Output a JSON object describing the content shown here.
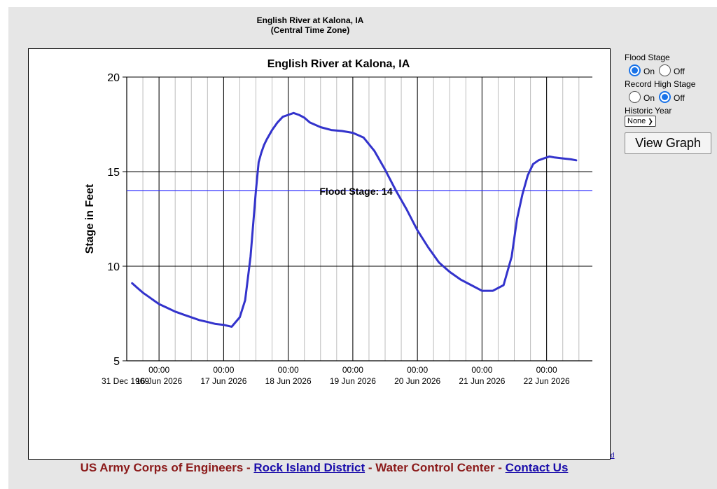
{
  "page": {
    "title_line1": "English River at Kalona, IA",
    "title_line2": "(Central Time Zone)"
  },
  "chart_data": {
    "type": "line",
    "title": "English River at Kalona, IA",
    "ylabel": "Stage in Feet",
    "xlabel": "",
    "ylim": [
      5,
      20
    ],
    "yticks": [
      5,
      10,
      15,
      20
    ],
    "xlim": [
      "2026-06-15T12:00",
      "2026-06-22T17:00"
    ],
    "x_major_ticks": [
      {
        "at": "2026-06-16T00:00",
        "time": "00:00",
        "date": "16 Jun 2026"
      },
      {
        "at": "2026-06-17T00:00",
        "time": "00:00",
        "date": "17 Jun 2026"
      },
      {
        "at": "2026-06-18T00:00",
        "time": "00:00",
        "date": "18 Jun 2026"
      },
      {
        "at": "2026-06-19T00:00",
        "time": "00:00",
        "date": "19 Jun 2026"
      },
      {
        "at": "2026-06-20T00:00",
        "time": "00:00",
        "date": "20 Jun 2026"
      },
      {
        "at": "2026-06-21T00:00",
        "time": "00:00",
        "date": "21 Jun 2026"
      },
      {
        "at": "2026-06-22T00:00",
        "time": "00:00",
        "date": "22 Jun 2026"
      }
    ],
    "x_first_label": "31 Dec 1969",
    "minor_gridlines_hours": 6,
    "grid": true,
    "flood_stage": {
      "value": 14,
      "label": "Flood Stage: 14",
      "color": "#3333ff"
    },
    "line_color": "#3333cc",
    "series": [
      {
        "x": [
          "2026-06-15T14:00",
          "2026-06-15T16:00",
          "2026-06-15T18:00",
          "2026-06-15T20:00",
          "2026-06-15T22:00",
          "2026-06-16T00:00",
          "2026-06-16T03:00",
          "2026-06-16T06:00",
          "2026-06-16T09:00",
          "2026-06-16T12:00",
          "2026-06-16T15:00",
          "2026-06-16T18:00",
          "2026-06-16T21:00",
          "2026-06-17T00:00",
          "2026-06-17T03:00",
          "2026-06-17T06:00",
          "2026-06-17T08:00",
          "2026-06-17T10:00",
          "2026-06-17T12:00",
          "2026-06-17T13:00",
          "2026-06-17T14:00",
          "2026-06-17T15:00",
          "2026-06-17T16:00",
          "2026-06-17T18:00",
          "2026-06-17T20:00",
          "2026-06-17T22:00",
          "2026-06-18T00:00",
          "2026-06-18T02:00",
          "2026-06-18T04:00",
          "2026-06-18T06:00",
          "2026-06-18T08:00",
          "2026-06-18T12:00",
          "2026-06-18T16:00",
          "2026-06-18T20:00",
          "2026-06-19T00:00",
          "2026-06-19T04:00",
          "2026-06-19T08:00",
          "2026-06-19T12:00",
          "2026-06-19T16:00",
          "2026-06-19T20:00",
          "2026-06-20T00:00",
          "2026-06-20T04:00",
          "2026-06-20T08:00",
          "2026-06-20T12:00",
          "2026-06-20T16:00",
          "2026-06-20T20:00",
          "2026-06-21T00:00",
          "2026-06-21T04:00",
          "2026-06-21T08:00",
          "2026-06-21T11:00",
          "2026-06-21T13:00",
          "2026-06-21T15:00",
          "2026-06-21T17:00",
          "2026-06-21T19:00",
          "2026-06-21T21:00",
          "2026-06-21T23:00",
          "2026-06-22T01:00",
          "2026-06-22T03:00",
          "2026-06-22T06:00",
          "2026-06-22T09:00",
          "2026-06-22T11:00"
        ],
        "y": [
          9.1,
          8.85,
          8.6,
          8.4,
          8.2,
          8.0,
          7.8,
          7.6,
          7.45,
          7.3,
          7.15,
          7.05,
          6.95,
          6.9,
          6.8,
          7.3,
          8.2,
          10.5,
          14.0,
          15.5,
          16.0,
          16.4,
          16.7,
          17.2,
          17.6,
          17.9,
          18.0,
          18.1,
          18.0,
          17.85,
          17.6,
          17.35,
          17.2,
          17.15,
          17.05,
          16.8,
          16.1,
          15.1,
          14.0,
          13.0,
          11.9,
          11.0,
          10.2,
          9.7,
          9.3,
          9.0,
          8.7,
          8.7,
          9.0,
          10.5,
          12.5,
          13.8,
          14.8,
          15.4,
          15.6,
          15.7,
          15.8,
          15.75,
          15.7,
          15.65,
          15.6
        ]
      }
    ]
  },
  "controls": {
    "flood_stage_label": "Flood  Stage",
    "on_label": "On",
    "off_label": "Off",
    "flood_stage_selected": "On",
    "record_high_label": "Record High Stage",
    "record_high_selected": "Off",
    "historic_year_label": "Historic Year",
    "historic_year_value": "None",
    "view_button_label": "View Graph"
  },
  "footer": {
    "org": "US Army Corps of Engineers",
    "sep1": " - ",
    "district_link": "Rock Island District",
    "sep2": " - ",
    "center": "Water Control Center",
    "sep3": " - ",
    "contact_link": "Contact Us"
  },
  "stray_link": "d"
}
